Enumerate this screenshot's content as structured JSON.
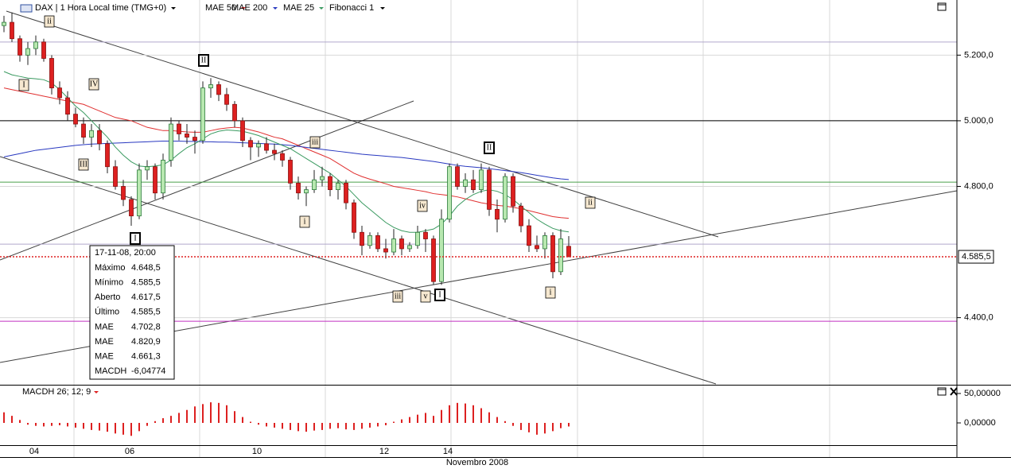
{
  "chart_data": [
    {
      "type": "candlestick",
      "title": "DAX | 1 Hora Local time (TMG+0)",
      "categories": [
        null,
        null,
        null,
        null,
        "04",
        null,
        null,
        null,
        null,
        null,
        null,
        null,
        null,
        null,
        null,
        null,
        "06",
        null,
        null,
        null,
        null,
        null,
        null,
        null,
        null,
        null,
        null,
        null,
        null,
        null,
        null,
        null,
        "10",
        null,
        null,
        null,
        null,
        null,
        null,
        null,
        null,
        null,
        null,
        null,
        null,
        null,
        null,
        null,
        "12",
        null,
        null,
        null,
        null,
        null,
        null,
        null,
        "14",
        null,
        null,
        null,
        null,
        null,
        null,
        null,
        null,
        null,
        null,
        null,
        null,
        null,
        null,
        null
      ],
      "open": [
        5290,
        5300,
        5250,
        5200,
        5220,
        5240,
        5190,
        5100,
        5070,
        5020,
        4990,
        4950,
        4970,
        4930,
        4860,
        4800,
        4760,
        4710,
        4850,
        4860,
        4780,
        4880,
        4990,
        4960,
        4950,
        4940,
        5100,
        5110,
        5080,
        5050,
        5000,
        4940,
        4920,
        4930,
        4910,
        4900,
        4880,
        4810,
        4780,
        4790,
        4820,
        4830,
        4790,
        4810,
        4750,
        4660,
        4620,
        4650,
        4610,
        4600,
        4640,
        4610,
        4620,
        4660,
        4640,
        4510,
        4700,
        4860,
        4800,
        4820,
        4790,
        4850,
        4730,
        4700,
        4830,
        4740,
        4680,
        4620,
        4610,
        4650,
        4540,
        4617.5
      ],
      "high": [
        5320,
        5330,
        5260,
        5240,
        5260,
        5250,
        5200,
        5120,
        5090,
        5040,
        5010,
        4990,
        4990,
        4940,
        4880,
        4820,
        4770,
        4870,
        4880,
        4870,
        4900,
        5010,
        5000,
        4990,
        4970,
        5120,
        5130,
        5120,
        5100,
        5060,
        5010,
        4950,
        4940,
        4950,
        4930,
        4910,
        4890,
        4830,
        4800,
        4850,
        4860,
        4840,
        4820,
        4820,
        4760,
        4680,
        4660,
        4660,
        4640,
        4670,
        4650,
        4630,
        4680,
        4670,
        4650,
        4730,
        4870,
        4870,
        4840,
        4850,
        4870,
        4860,
        4760,
        4840,
        4840,
        4750,
        4700,
        4650,
        4660,
        4660,
        4670,
        4648.5
      ],
      "low": [
        5270,
        5240,
        5180,
        5170,
        5200,
        5180,
        5080,
        5050,
        5000,
        4980,
        4930,
        4920,
        4910,
        4840,
        4790,
        4740,
        4680,
        4700,
        4820,
        4760,
        4760,
        4860,
        4940,
        4930,
        4900,
        4930,
        5070,
        5060,
        5030,
        4980,
        4920,
        4880,
        4890,
        4900,
        4880,
        4860,
        4790,
        4760,
        4740,
        4780,
        4800,
        4770,
        4760,
        4730,
        4640,
        4590,
        4610,
        4600,
        4580,
        4590,
        4590,
        4600,
        4610,
        4600,
        4500,
        4500,
        4690,
        4790,
        4780,
        4780,
        4780,
        4710,
        4660,
        4690,
        4720,
        4660,
        4600,
        4600,
        4580,
        4520,
        4530,
        4585.5
      ],
      "close": [
        5300,
        5250,
        5200,
        5220,
        5240,
        5190,
        5100,
        5070,
        5020,
        4990,
        4950,
        4970,
        4930,
        4860,
        4800,
        4760,
        4710,
        4850,
        4860,
        4780,
        4880,
        4990,
        4960,
        4950,
        4940,
        5100,
        5110,
        5080,
        5050,
        5000,
        4940,
        4920,
        4930,
        4910,
        4900,
        4880,
        4810,
        4780,
        4790,
        4820,
        4830,
        4790,
        4810,
        4750,
        4660,
        4620,
        4650,
        4610,
        4600,
        4640,
        4610,
        4620,
        4660,
        4640,
        4510,
        4700,
        4860,
        4800,
        4820,
        4790,
        4850,
        4730,
        4700,
        4830,
        4740,
        4680,
        4620,
        4610,
        4650,
        4540,
        4640,
        4585.5
      ],
      "up_color": "#b8e8b0",
      "down_color": "#dd2020",
      "series": [
        {
          "name": "MAE 50",
          "color": "#e03030",
          "values": [
            5100,
            5095,
            5090,
            5085,
            5080,
            5075,
            5070,
            5065,
            5060,
            5055,
            5050,
            5040,
            5030,
            5020,
            5010,
            5005,
            5000,
            4990,
            4980,
            4975,
            4970,
            4970,
            4968,
            4966,
            4965,
            4965,
            4970,
            4975,
            4978,
            4980,
            4978,
            4972,
            4966,
            4958,
            4950,
            4945,
            4935,
            4925,
            4915,
            4905,
            4895,
            4885,
            4870,
            4855,
            4840,
            4830,
            4822,
            4815,
            4808,
            4800,
            4796,
            4792,
            4788,
            4784,
            4778,
            4775,
            4772,
            4768,
            4762,
            4756,
            4750,
            4746,
            4742,
            4740,
            4736,
            4732,
            4726,
            4720,
            4714,
            4708,
            4705,
            4702.8
          ]
        },
        {
          "name": "MAE 200",
          "color": "#2838c0",
          "values": [
            4890,
            4895,
            4900,
            4905,
            4910,
            4913,
            4916,
            4919,
            4922,
            4925,
            4927,
            4929,
            4930,
            4931,
            4932,
            4933,
            4934,
            4935,
            4936,
            4937,
            4938,
            4938,
            4938,
            4937,
            4937,
            4936,
            4936,
            4935,
            4935,
            4934,
            4933,
            4932,
            4931,
            4930,
            4929,
            4927,
            4925,
            4922,
            4919,
            4916,
            4913,
            4910,
            4907,
            4904,
            4901,
            4898,
            4896,
            4894,
            4892,
            4890,
            4888,
            4885,
            4882,
            4879,
            4876,
            4872,
            4868,
            4864,
            4861,
            4859,
            4857,
            4854,
            4851,
            4848,
            4845,
            4842,
            4838,
            4834,
            4830,
            4826,
            4823,
            4820.9
          ]
        },
        {
          "name": "MAE 25",
          "color": "#3a9a60",
          "values": [
            5150,
            5140,
            5135,
            5130,
            5128,
            5125,
            5115,
            5095,
            5070,
            5045,
            5025,
            5000,
            4975,
            4950,
            4920,
            4895,
            4875,
            4862,
            4860,
            4862,
            4866,
            4880,
            4900,
            4918,
            4930,
            4945,
            4960,
            4968,
            4972,
            4970,
            4968,
            4962,
            4955,
            4945,
            4935,
            4925,
            4915,
            4900,
            4885,
            4870,
            4855,
            4840,
            4820,
            4800,
            4775,
            4750,
            4730,
            4710,
            4690,
            4675,
            4665,
            4660,
            4660,
            4665,
            4670,
            4685,
            4710,
            4740,
            4760,
            4775,
            4785,
            4790,
            4785,
            4775,
            4760,
            4740,
            4720,
            4700,
            4685,
            4672,
            4665,
            4661.3
          ]
        }
      ],
      "fibonacci": {
        "name": "Fibonacci 1",
        "levels": [
          {
            "value": 5240,
            "color": "#b0a8cc"
          },
          {
            "value": 5000,
            "color": "#000000"
          },
          {
            "value": 4813,
            "color": "#4aa04a"
          },
          {
            "value": 4624,
            "color": "#b0a8cc"
          },
          {
            "value": 4389,
            "color": "#c030c0"
          }
        ]
      },
      "last_price": {
        "value": 4585.5,
        "label": "4.585,5",
        "color": "#dd2020"
      },
      "ylim": [
        4198,
        5368
      ],
      "yticks": [
        {
          "value": 4400,
          "label": "4.400,0"
        },
        {
          "value": 4800,
          "label": "4.800,0"
        },
        {
          "value": 5000,
          "label": "5.000,0"
        },
        {
          "value": 5200,
          "label": "5.200,0"
        }
      ],
      "grid": true,
      "x_axis_label": "Novembro 2008",
      "annotations": [
        "ii",
        "I",
        "IV",
        "III",
        "I",
        "II",
        "iii",
        "i",
        "iv",
        "iii",
        "v",
        "I",
        "II",
        "ii",
        "i"
      ],
      "info_box": {
        "title": "17-11-08, 20:00",
        "rows": [
          {
            "label": "Máximo",
            "value": "4.648,5",
            "color": "#000000"
          },
          {
            "label": "Mínimo",
            "value": "4.585,5",
            "color": "#000000"
          },
          {
            "label": "Aberto",
            "value": "4.617,5",
            "color": "#000000"
          },
          {
            "label": "Último",
            "value": "4.585,5",
            "color": "#000000"
          },
          {
            "label": "MAE",
            "value": "4.702,8",
            "color": "#e03030"
          },
          {
            "label": "MAE",
            "value": "4.820,9",
            "color": "#2838c0"
          },
          {
            "label": "MAE",
            "value": "4.661,3",
            "color": "#3a9a60"
          },
          {
            "label": "MACDH",
            "value": "-6,04774",
            "color": "#dd2020"
          }
        ]
      }
    },
    {
      "type": "bar",
      "title": "MACDH 26; 12; 9",
      "color": "#dd2020",
      "values": [
        18,
        12,
        5,
        -3,
        -5,
        -6,
        -5,
        -4,
        -6,
        -8,
        -10,
        -12,
        -13,
        -15,
        -18,
        -20,
        -22,
        -14,
        -5,
        3,
        8,
        12,
        17,
        22,
        28,
        32,
        35,
        34,
        30,
        20,
        10,
        2,
        -3,
        -6,
        -8,
        -10,
        -12,
        -14,
        -15,
        -13,
        -12,
        -10,
        -9,
        -11,
        -12,
        -10,
        -8,
        -6,
        -4,
        2,
        6,
        10,
        14,
        17,
        12,
        22,
        30,
        34,
        33,
        30,
        25,
        18,
        10,
        3,
        -5,
        -12,
        -16,
        -20,
        -18,
        -14,
        -9,
        -6.04774
      ],
      "ylim": [
        -37.8,
        60.8
      ],
      "yticks": [
        {
          "value": 50,
          "label": "50,00000"
        },
        {
          "value": 0,
          "label": "0,00000"
        }
      ]
    }
  ]
}
